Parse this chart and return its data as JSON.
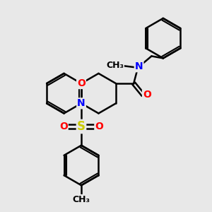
{
  "bg_color": "#e8e8e8",
  "atom_colors": {
    "C": "#000000",
    "N": "#0000ff",
    "O": "#ff0000",
    "S": "#cccc00"
  },
  "bond_color": "#000000",
  "bond_width": 1.8,
  "font_size_atoms": 10,
  "font_size_small": 8,
  "xlim": [
    0,
    10
  ],
  "ylim": [
    0,
    10
  ]
}
